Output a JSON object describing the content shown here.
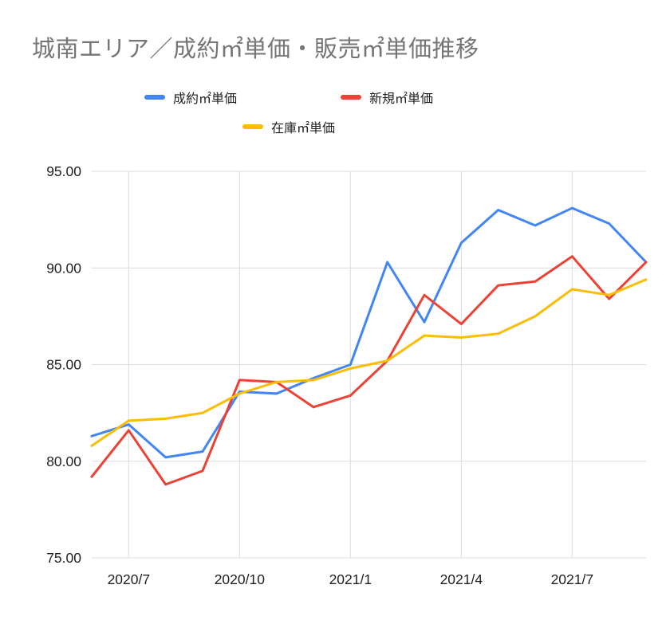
{
  "title": "城南エリア／成約㎡単価・販売㎡単価推移",
  "legend": {
    "items": [
      {
        "label": "成約㎡単価"
      },
      {
        "label": "新規㎡単価"
      },
      {
        "label": "在庫㎡単価"
      }
    ]
  },
  "chart_data": {
    "type": "line",
    "title": "城南エリア／成約㎡単価・販売㎡単価推移",
    "categories": [
      "2020/6",
      "2020/7",
      "2020/8",
      "2020/9",
      "2020/10",
      "2020/11",
      "2020/12",
      "2021/1",
      "2021/2",
      "2021/3",
      "2021/4",
      "2021/5",
      "2021/6",
      "2021/7",
      "2021/8",
      "2021/9"
    ],
    "series": [
      {
        "name": "成約㎡単価",
        "color": "#4285f4",
        "values": [
          81.3,
          81.9,
          80.2,
          80.5,
          83.6,
          83.5,
          84.3,
          85.0,
          90.3,
          87.2,
          91.3,
          93.0,
          92.2,
          93.1,
          92.3,
          90.3
        ]
      },
      {
        "name": "新規㎡単価",
        "color": "#ea4335",
        "values": [
          79.2,
          81.6,
          78.8,
          79.5,
          84.2,
          84.1,
          82.8,
          83.4,
          85.2,
          88.6,
          87.1,
          89.1,
          89.3,
          90.6,
          88.4,
          90.3
        ]
      },
      {
        "name": "在庫㎡単価",
        "color": "#fbbc04",
        "values": [
          80.8,
          82.1,
          82.2,
          82.5,
          83.5,
          84.1,
          84.2,
          84.8,
          85.2,
          86.5,
          86.4,
          86.6,
          87.5,
          88.9,
          88.6,
          89.4
        ]
      }
    ],
    "xlabel": "",
    "ylabel": "",
    "ylim": [
      75,
      95
    ],
    "grid": true,
    "legend_position": "top",
    "y_ticks": [
      {
        "value": 95,
        "label": "95.00"
      },
      {
        "value": 90,
        "label": "90.00"
      },
      {
        "value": 85,
        "label": "85.00"
      },
      {
        "value": 80,
        "label": "80.00"
      },
      {
        "value": 75,
        "label": "75.00"
      }
    ],
    "x_ticks": [
      {
        "index": 1,
        "label": "2020/7"
      },
      {
        "index": 4,
        "label": "2020/10"
      },
      {
        "index": 7,
        "label": "2021/1"
      },
      {
        "index": 10,
        "label": "2021/4"
      },
      {
        "index": 13,
        "label": "2021/7"
      }
    ]
  },
  "colors": {
    "background": "#ffffff",
    "title_text": "#757575",
    "axis_label": "#1f1f1f",
    "gridline": "#dcdcdc"
  }
}
